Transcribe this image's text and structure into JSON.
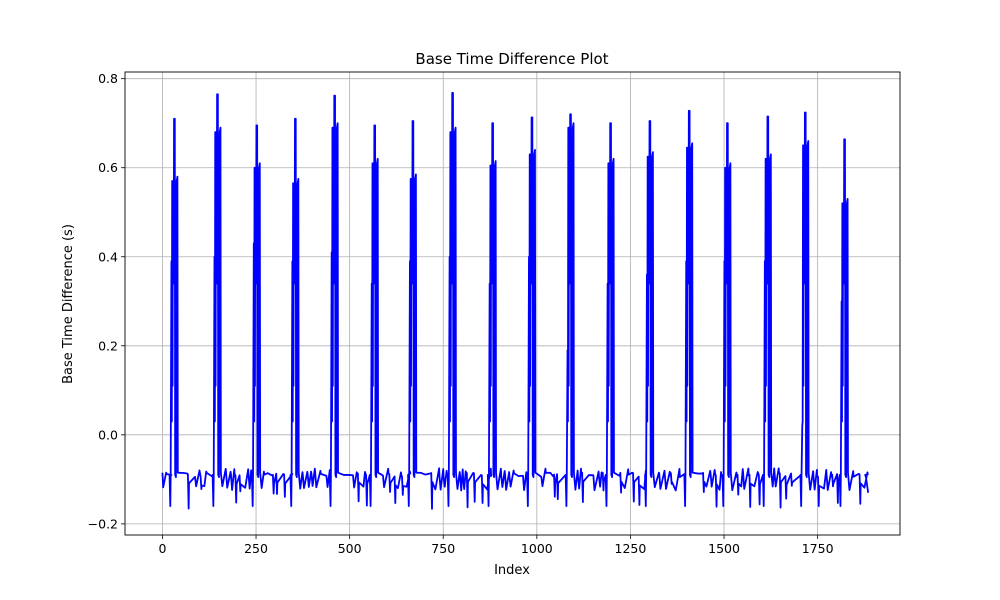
{
  "chart_data": {
    "type": "line",
    "title": "Base Time Difference Plot",
    "xlabel": "Index",
    "ylabel": "Base Time Difference (s)",
    "xlim": [
      -100,
      1970
    ],
    "ylim": [
      -0.225,
      0.815
    ],
    "xticks": [
      0,
      250,
      500,
      750,
      1000,
      1250,
      1500,
      1750
    ],
    "xtick_labels": [
      "0",
      "250",
      "500",
      "750",
      "1000",
      "1250",
      "1500",
      "1750"
    ],
    "yticks": [
      -0.2,
      0.0,
      0.2,
      0.4,
      0.6,
      0.8
    ],
    "ytick_labels": [
      "−0.2",
      "0.0",
      "0.2",
      "0.4",
      "0.6",
      "0.8"
    ],
    "grid": true,
    "series": [
      {
        "color": "#0000ff",
        "spikes": [
          {
            "x": 35,
            "peak": 0.71,
            "minor": 0.57,
            "low": 0.39
          },
          {
            "x": 150,
            "peak": 0.765,
            "minor": 0.68,
            "low": 0.4
          },
          {
            "x": 255,
            "peak": 0.695,
            "minor": 0.6,
            "low": 0.43
          },
          {
            "x": 358,
            "peak": 0.71,
            "minor": 0.565,
            "low": 0.39
          },
          {
            "x": 463,
            "peak": 0.762,
            "minor": 0.69,
            "low": 0.41
          },
          {
            "x": 570,
            "peak": 0.695,
            "minor": 0.61,
            "low": 0.34
          },
          {
            "x": 672,
            "peak": 0.705,
            "minor": 0.575,
            "low": 0.39
          },
          {
            "x": 778,
            "peak": 0.768,
            "minor": 0.68,
            "low": 0.4
          },
          {
            "x": 885,
            "peak": 0.7,
            "minor": 0.605,
            "low": 0.34
          },
          {
            "x": 990,
            "peak": 0.713,
            "minor": 0.63,
            "low": 0.4
          },
          {
            "x": 1093,
            "peak": 0.72,
            "minor": 0.69,
            "low": 0.19
          },
          {
            "x": 1200,
            "peak": 0.7,
            "minor": 0.61,
            "low": 0.34
          },
          {
            "x": 1305,
            "peak": 0.705,
            "minor": 0.625,
            "low": 0.36
          },
          {
            "x": 1410,
            "peak": 0.728,
            "minor": 0.645,
            "low": 0.39
          },
          {
            "x": 1512,
            "peak": 0.7,
            "minor": 0.6,
            "low": 0.39
          },
          {
            "x": 1620,
            "peak": 0.715,
            "minor": 0.62,
            "low": 0.39
          },
          {
            "x": 1720,
            "peak": 0.724,
            "minor": 0.65,
            "low": 0.02
          },
          {
            "x": 1825,
            "peak": 0.664,
            "minor": 0.52,
            "low": 0.3
          }
        ],
        "baseline": {
          "x_start": 0,
          "x_end": 1885,
          "typical": -0.085,
          "dip_min": -0.17
        }
      }
    ]
  }
}
